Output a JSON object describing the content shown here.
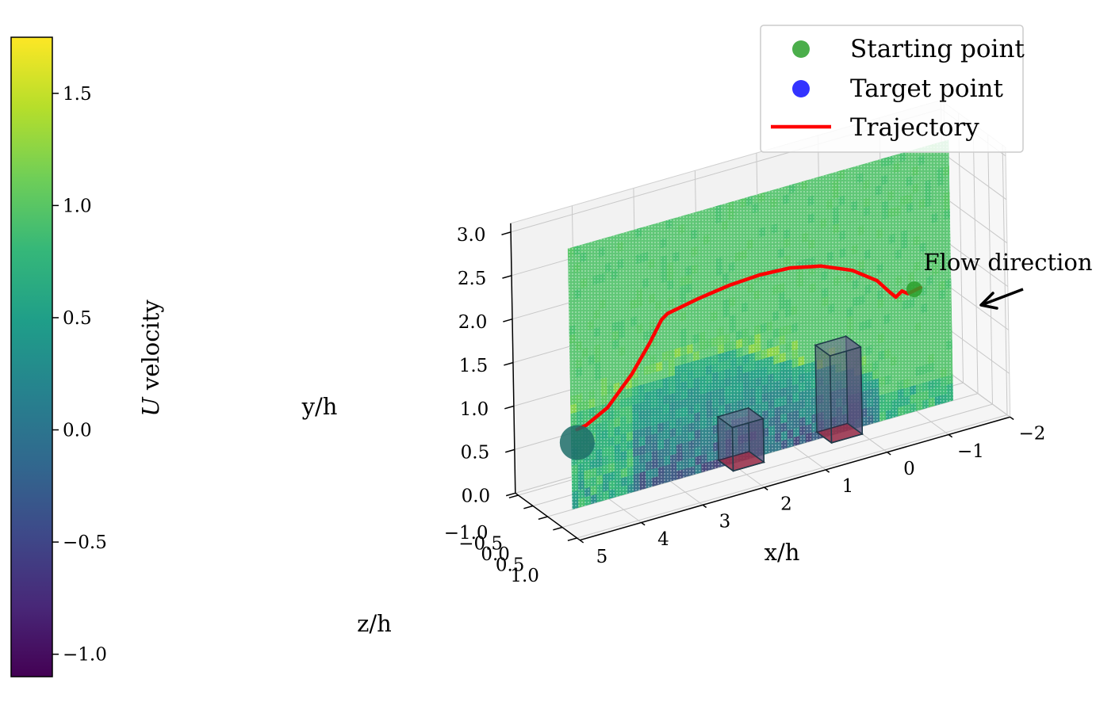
{
  "chart_data": {
    "type": "scatter",
    "title": "",
    "colorbar": {
      "label": "U velocity",
      "colormap": "viridis",
      "range": [
        -1.1,
        1.75
      ],
      "ticks": [
        -1.0,
        -0.5,
        0.0,
        0.5,
        1.0,
        1.5
      ],
      "tick_labels": [
        "−1.0",
        "−0.5",
        "0.0",
        "0.5",
        "1.0",
        "1.5"
      ],
      "colors": [
        "#440154",
        "#482878",
        "#3e4989",
        "#31688e",
        "#26828e",
        "#1f9e89",
        "#35b779",
        "#6ece58",
        "#b5de2b",
        "#fde725"
      ]
    },
    "axes": {
      "x": {
        "label": "x/h",
        "range": [
          -2,
          5
        ],
        "ticks": [
          -2,
          -1,
          0,
          1,
          2,
          3,
          4,
          5
        ],
        "tick_labels": [
          "−2",
          "−1",
          "0",
          "1",
          "2",
          "3",
          "4",
          "5"
        ]
      },
      "y": {
        "label": "y/h",
        "range": [
          0,
          3.0
        ],
        "ticks": [
          0,
          0.5,
          1.0,
          1.5,
          2.0,
          2.5,
          3.0
        ],
        "tick_labels": [
          "0.0",
          "0.5",
          "1.0",
          "1.5",
          "2.0",
          "2.5",
          "3.0"
        ]
      },
      "z": {
        "label": "z/h",
        "range": [
          -1.0,
          1.0
        ],
        "ticks": [
          -1.0,
          -0.5,
          0.0,
          0.5,
          1.0
        ],
        "tick_labels": [
          "−1.0",
          "−0.5",
          "0.0",
          "0.5",
          "1.0"
        ]
      }
    },
    "legend": {
      "placement": "top-right",
      "entries": [
        {
          "label": "Starting point",
          "marker": "circle",
          "color": "#2ca02c"
        },
        {
          "label": "Target point",
          "marker": "circle",
          "color": "#0000ff"
        },
        {
          "label": "Trajectory",
          "marker": "line",
          "color": "#ff0000"
        }
      ]
    },
    "velocity_plane": {
      "z": 0.0,
      "x_range": [
        -1.6,
        4.6
      ],
      "y_range": [
        0,
        3.0
      ],
      "freestream_u": 0.95,
      "wake_u_min": -0.7
    },
    "obstacles": [
      {
        "name": "building-1",
        "x": [
          0,
          0.5
        ],
        "z": [
          -0.25,
          0.25
        ],
        "height": 1.0,
        "base_color": "#ff0000"
      },
      {
        "name": "building-2",
        "x": [
          1.6,
          2.1
        ],
        "z": [
          -0.25,
          0.25
        ],
        "height": 0.5,
        "base_color": "#ff0000"
      }
    ],
    "starting_point": {
      "x": -1.0,
      "y": 1.4,
      "z": 0.0,
      "color": "#2ca02c"
    },
    "target_point": {
      "x": 4.5,
      "y": 0.75,
      "z": 0.0,
      "color": "#1f6f6a"
    },
    "trajectory": {
      "color": "#ff0000",
      "points": [
        [
          -1.1,
          1.4
        ],
        [
          -0.9,
          1.37
        ],
        [
          -0.8,
          1.42
        ],
        [
          -0.7,
          1.37
        ],
        [
          -0.6,
          1.45
        ],
        [
          -0.4,
          1.62
        ],
        [
          0.0,
          1.82
        ],
        [
          0.5,
          1.97
        ],
        [
          1.0,
          2.05
        ],
        [
          1.5,
          2.07
        ],
        [
          2.0,
          2.05
        ],
        [
          2.5,
          2.0
        ],
        [
          3.0,
          1.93
        ],
        [
          3.1,
          1.88
        ],
        [
          3.3,
          1.65
        ],
        [
          3.6,
          1.35
        ],
        [
          4.0,
          1.05
        ],
        [
          4.35,
          0.92
        ],
        [
          4.5,
          0.9
        ]
      ]
    },
    "annotation": {
      "text": "Flow direction"
    }
  }
}
